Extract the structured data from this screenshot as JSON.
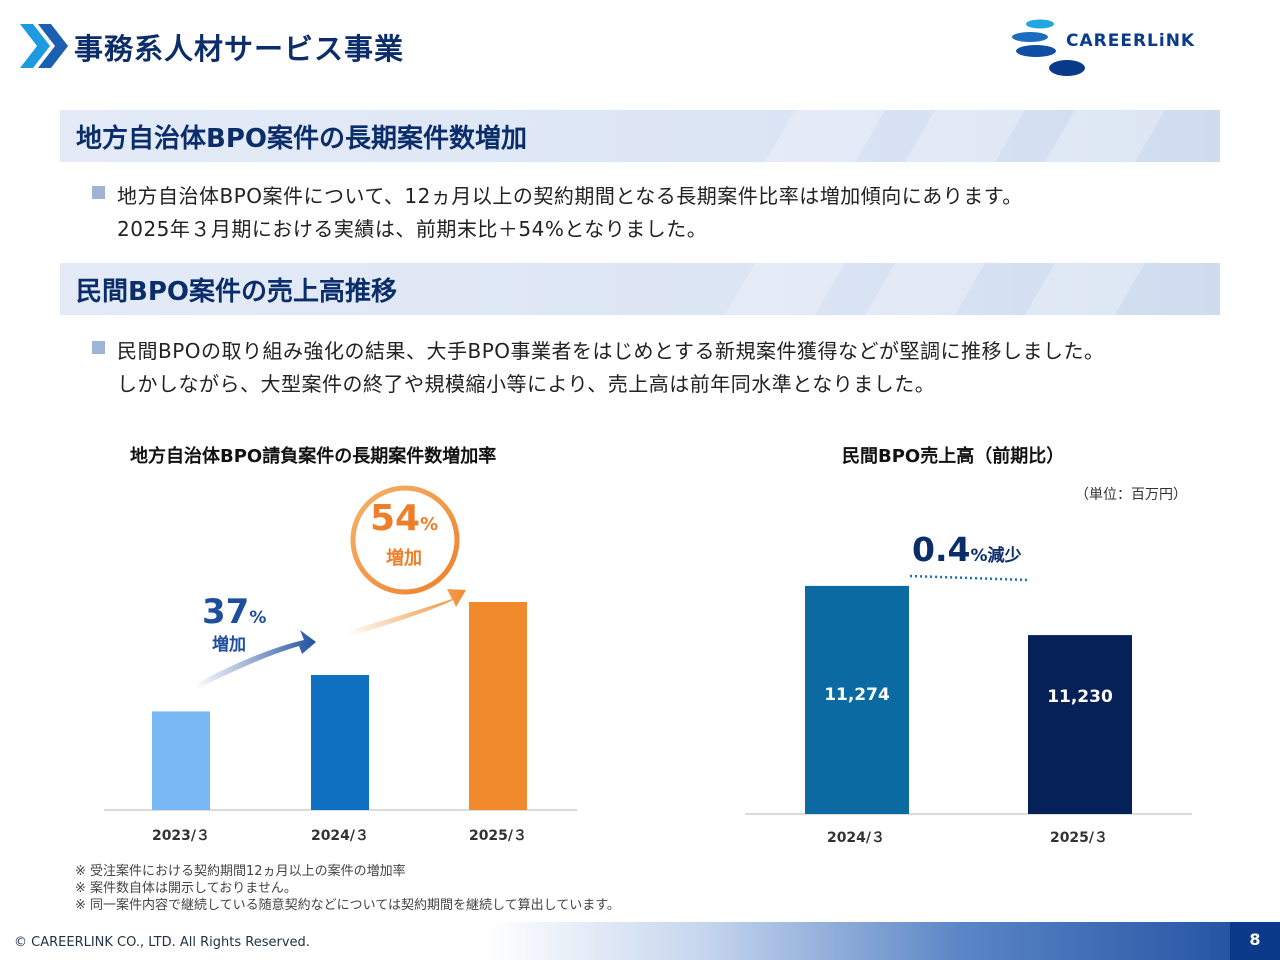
{
  "header": {
    "title": "事務系人材サービス事業",
    "logo_text": "CAREERLiNK"
  },
  "section1": {
    "title": "地方自治体BPO案件の長期案件数増加",
    "lines": [
      "地方自治体BPO案件について、12ヵ月以上の契約期間となる長期案件比率は増加傾向にあります。",
      "2025年３月期における実績は、前期末比＋54%となりました。"
    ]
  },
  "section2": {
    "title": "民間BPO案件の売上高推移",
    "lines": [
      "民間BPOの取り組み強化の結果、大手BPO事業者をはじめとする新規案件獲得などが堅調に推移しました。",
      "しかしながら、大型案件の終了や規模縮小等により、売上高は前年同水準となりました。"
    ]
  },
  "chart_data": [
    {
      "type": "bar",
      "title": "地方自治体BPO請負案件の長期案件数増加率",
      "categories": [
        "2023/３",
        "2024/３",
        "2025/３"
      ],
      "values": [
        1.0,
        1.37,
        2.11
      ],
      "colors": [
        "#7ab8f5",
        "#0f6fc1",
        "#f08a2c"
      ],
      "annotations": [
        {
          "value": "37",
          "unit": "%",
          "label": "増加"
        },
        {
          "value": "54",
          "unit": "%",
          "label": "増加"
        }
      ]
    },
    {
      "type": "bar",
      "title": "民間BPO売上高（前期比）",
      "unit_note": "（単位：百万円）",
      "categories": [
        "2024/３",
        "2025/３"
      ],
      "values": [
        11274,
        11230
      ],
      "value_labels": [
        "11,274",
        "11,230"
      ],
      "colors": [
        "#0b6aa2",
        "#062158"
      ],
      "annotation": {
        "value": "0.4",
        "suffix": "%減少"
      }
    }
  ],
  "footnotes": [
    "※ 受注案件における契約期間12ヵ月以上の案件の増加率",
    "※ 案件数自体は開示しておりません。",
    "※ 同一案件内容で継続している随意契約などについては契約期間を継続して算出しています。"
  ],
  "footer": {
    "copyright": "© CAREERLINK CO., LTD. All Rights Reserved.",
    "page_number": "8"
  }
}
